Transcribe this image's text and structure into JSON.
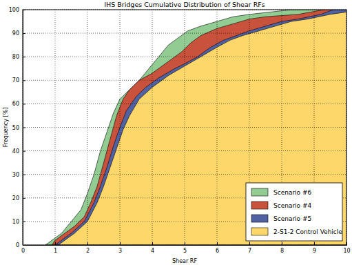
{
  "chart_data": {
    "type": "area",
    "title": "IHS Bridges Cumulative Distribution of Shear RFs",
    "x_label": "Shear RF",
    "y_label": "Frequency [%]",
    "xlim": [
      0,
      10
    ],
    "ylim": [
      0,
      100
    ],
    "xticks": [
      0,
      1,
      2,
      3,
      4,
      5,
      6,
      7,
      8,
      9,
      10
    ],
    "yticks": [
      0,
      10,
      20,
      30,
      40,
      50,
      60,
      70,
      80,
      90,
      100
    ],
    "grid": true,
    "legend": "lower right",
    "series": [
      {
        "name": "Scenario #6",
        "color": "#92cc92",
        "x": [
          0.7,
          0.8,
          1.0,
          1.2,
          1.5,
          1.8,
          2.0,
          2.2,
          2.4,
          2.6,
          2.8,
          3.0,
          3.3,
          3.6,
          3.9,
          4.2,
          4.5,
          4.8,
          5.1,
          5.5,
          6.0,
          6.5,
          7.0,
          8.3
        ],
        "values": [
          0,
          1,
          3,
          5,
          10,
          15,
          22,
          30,
          40,
          48,
          56,
          62,
          66,
          70,
          75,
          80,
          85,
          88,
          91,
          93,
          95,
          97,
          98,
          100
        ]
      },
      {
        "name": "Scenario #4",
        "color": "#c8523c",
        "x": [
          0.9,
          1.0,
          1.3,
          1.6,
          1.9,
          2.1,
          2.3,
          2.5,
          2.7,
          2.9,
          3.1,
          3.3,
          3.6,
          4.0,
          4.5,
          4.9,
          5.2,
          5.5,
          6.0,
          6.5,
          7.0,
          7.5,
          8.5,
          9.3
        ],
        "values": [
          0,
          2,
          5,
          8,
          12,
          18,
          25,
          35,
          45,
          55,
          62,
          66,
          70,
          73,
          78,
          82,
          86,
          89,
          92,
          94,
          96,
          97,
          98,
          100
        ]
      },
      {
        "name": "Scenario #5",
        "color": "#5162a2",
        "x": [
          1.0,
          1.2,
          1.5,
          1.9,
          2.2,
          2.4,
          2.6,
          2.8,
          3.0,
          3.2,
          3.5,
          3.8,
          4.2,
          4.7,
          5.0,
          5.4,
          5.8,
          6.2,
          6.6,
          7.0,
          7.5,
          8.0,
          8.5,
          9.2,
          9.6
        ],
        "values": [
          0,
          2,
          5,
          10,
          18,
          25,
          33,
          42,
          50,
          57,
          63,
          67,
          71,
          75,
          77,
          80,
          84,
          87,
          89,
          91,
          93,
          95,
          96,
          98,
          100
        ]
      },
      {
        "name": "2-S1-2 Control Vehicle",
        "color": "#fed76a",
        "x": [
          1.1,
          1.3,
          1.6,
          2.0,
          2.3,
          2.5,
          2.7,
          2.9,
          3.1,
          3.3,
          3.6,
          4.0,
          4.5,
          5.0,
          5.5,
          6.0,
          6.4,
          6.8,
          7.3,
          7.8,
          8.3,
          8.8,
          9.5,
          10.0
        ],
        "values": [
          0,
          2,
          5,
          10,
          18,
          25,
          33,
          41,
          49,
          55,
          62,
          67,
          72,
          76,
          80,
          84,
          87,
          89,
          91,
          93,
          95,
          96,
          98,
          99
        ]
      }
    ]
  }
}
